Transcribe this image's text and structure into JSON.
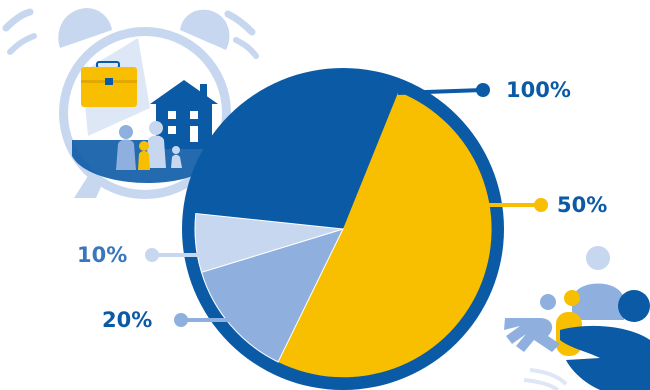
{
  "colors": {
    "navy": "#0b5aa5",
    "gold": "#f7bf00",
    "mid_blue": "#8fb0de",
    "light_blue": "#c6d7ef",
    "ring": "#0b5aa5"
  },
  "chart_data": {
    "type": "pie",
    "title": "",
    "slices": [
      {
        "label": "100%",
        "value": 100,
        "color_key": "navy"
      },
      {
        "label": "50%",
        "value": 50,
        "color_key": "gold"
      },
      {
        "label": "20%",
        "value": 20,
        "color_key": "mid_blue"
      },
      {
        "label": "10%",
        "value": 10,
        "color_key": "light_blue"
      }
    ],
    "legend": "none"
  },
  "illustrations": {
    "alarm_clock": "alarm-clock-icon",
    "briefcase": "briefcase-icon",
    "house": "house-icon",
    "family": "family-icon",
    "hands_coin": "hands-coin-icon"
  }
}
